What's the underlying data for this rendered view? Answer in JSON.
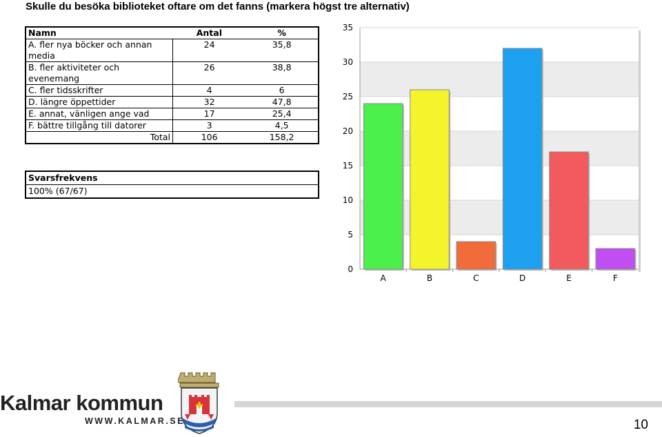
{
  "page": {
    "title": "Skulle du besöka biblioteket oftare om det fanns (markera högst tre alternativ)",
    "page_number": "10"
  },
  "table": {
    "headers": {
      "name": "Namn",
      "count": "Antal",
      "pct": "%"
    },
    "rows": [
      {
        "name": "A. fler nya böcker och annan media",
        "count": "24",
        "pct": "35,8"
      },
      {
        "name": "B. fler aktiviteter och evenemang",
        "count": "26",
        "pct": "38,8"
      },
      {
        "name": "C. fler tidsskrifter",
        "count": "4",
        "pct": "6"
      },
      {
        "name": "D. längre öppettider",
        "count": "32",
        "pct": "47,8"
      },
      {
        "name": "E. annat, vänligen ange vad",
        "count": "17",
        "pct": "25,4"
      },
      {
        "name": "F. bättre tillgång till datorer",
        "count": "3",
        "pct": "4,5"
      }
    ],
    "total": {
      "label": "Total",
      "count": "106",
      "pct": "158,2"
    }
  },
  "response": {
    "header": "Svarsfrekvens",
    "value": "100% (67/67)"
  },
  "branding": {
    "name": "Kalmar kommun",
    "url": "WWW.KALMAR.SE"
  },
  "chart_data": {
    "type": "bar",
    "categories": [
      "A",
      "B",
      "C",
      "D",
      "E",
      "F"
    ],
    "values": [
      24,
      26,
      4,
      32,
      17,
      3
    ],
    "colors": [
      "#4cf04c",
      "#f4f42a",
      "#f26b3a",
      "#1ea0f0",
      "#f25a5e",
      "#c14ef0"
    ],
    "ylim": [
      0,
      35
    ],
    "yticks": [
      0,
      5,
      10,
      15,
      20,
      25,
      30,
      35
    ],
    "grid": true
  }
}
